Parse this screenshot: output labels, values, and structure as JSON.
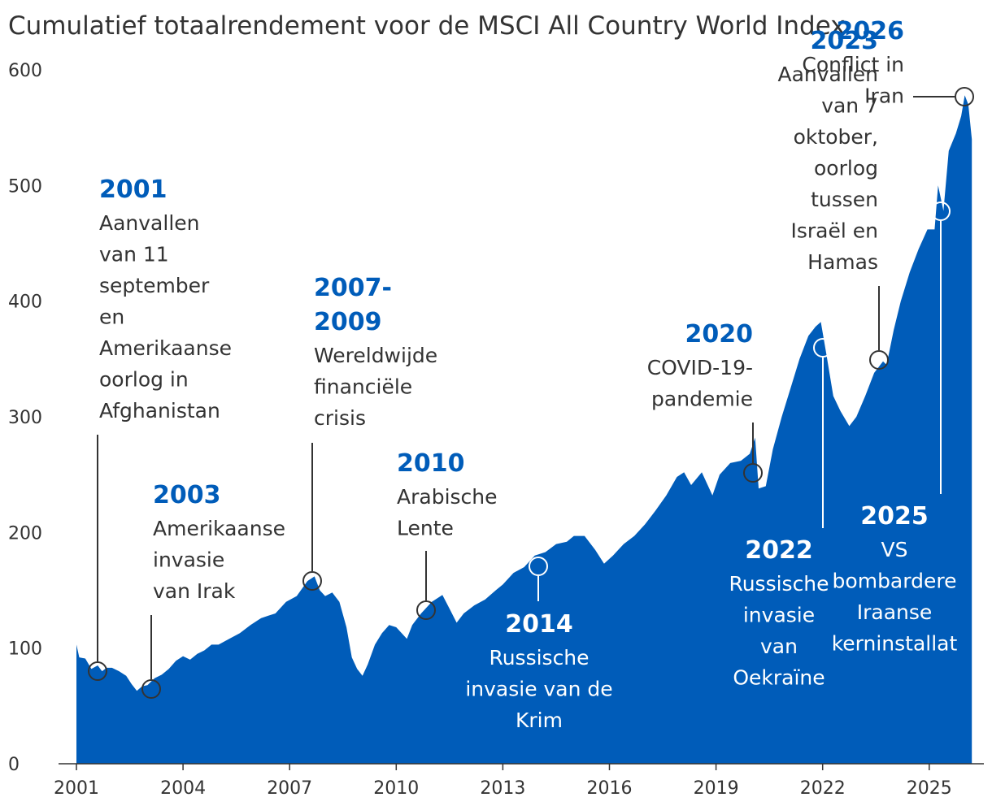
{
  "chart_data": {
    "type": "area",
    "title": "Cumulatief totaalrendement voor de MSCI All Country World Index",
    "xlabel": "",
    "ylabel": "",
    "xlim": [
      2001,
      2026.3
    ],
    "ylim": [
      0,
      600
    ],
    "x_ticks": [
      "2001",
      "2004",
      "2007",
      "2010",
      "2013",
      "2016",
      "2019",
      "2022",
      "2025"
    ],
    "y_ticks": [
      "0",
      "100",
      "200",
      "300",
      "400",
      "500",
      "600"
    ],
    "grid": false,
    "colors": {
      "area": "#005cb9",
      "year_text": "#005cb9",
      "body_text": "#333333",
      "inside_text": "#ffffff"
    },
    "series": [
      {
        "x": [
          2001.0,
          2001.08,
          2001.25,
          2001.42,
          2001.6,
          2001.72,
          2001.85,
          2002.0,
          2002.2,
          2002.4,
          2002.55,
          2002.7,
          2002.85,
          2003.0,
          2003.2,
          2003.4,
          2003.6,
          2003.8,
          2004.0,
          2004.2,
          2004.4,
          2004.6,
          2004.8,
          2005.0,
          2005.3,
          2005.6,
          2005.9,
          2006.2,
          2006.4,
          2006.6,
          2006.9,
          2007.2,
          2007.5,
          2007.7,
          2007.85,
          2008.0,
          2008.2,
          2008.4,
          2008.6,
          2008.75,
          2008.9,
          2009.05,
          2009.2,
          2009.4,
          2009.6,
          2009.8,
          2010.0,
          2010.3,
          2010.45,
          2010.7,
          2011.0,
          2011.3,
          2011.5,
          2011.7,
          2011.9,
          2012.2,
          2012.5,
          2012.8,
          2013.0,
          2013.3,
          2013.6,
          2013.9,
          2014.2,
          2014.5,
          2014.8,
          2015.0,
          2015.3,
          2015.6,
          2015.85,
          2016.1,
          2016.4,
          2016.7,
          2017.0,
          2017.3,
          2017.6,
          2017.9,
          2018.1,
          2018.3,
          2018.6,
          2018.9,
          2019.1,
          2019.4,
          2019.7,
          2019.95,
          2020.1,
          2020.2,
          2020.4,
          2020.6,
          2020.85,
          2021.1,
          2021.35,
          2021.6,
          2021.8,
          2021.95,
          2022.1,
          2022.3,
          2022.5,
          2022.75,
          2022.95,
          2023.2,
          2023.45,
          2023.7,
          2023.8,
          2024.0,
          2024.2,
          2024.45,
          2024.7,
          2024.95,
          2025.15,
          2025.25,
          2025.4,
          2025.55,
          2025.75,
          2025.9,
          2026.0,
          2026.1,
          2026.2
        ],
        "y": [
          103,
          92,
          91,
          82,
          85,
          80,
          83,
          83,
          80,
          76,
          69,
          63,
          67,
          68,
          74,
          77,
          82,
          89,
          93,
          90,
          95,
          98,
          103,
          103,
          108,
          113,
          120,
          126,
          128,
          130,
          140,
          145,
          158,
          162,
          150,
          145,
          148,
          140,
          118,
          92,
          82,
          76,
          86,
          103,
          113,
          120,
          118,
          108,
          120,
          130,
          140,
          146,
          134,
          122,
          130,
          137,
          142,
          150,
          155,
          165,
          170,
          180,
          183,
          190,
          192,
          197,
          197,
          185,
          173,
          180,
          190,
          197,
          207,
          219,
          232,
          248,
          252,
          241,
          252,
          232,
          250,
          260,
          262,
          268,
          282,
          238,
          240,
          272,
          300,
          325,
          350,
          370,
          378,
          382,
          355,
          318,
          305,
          292,
          300,
          318,
          338,
          348,
          345,
          375,
          400,
          425,
          445,
          462,
          462,
          500,
          478,
          530,
          545,
          560,
          578,
          570,
          540
        ]
      }
    ],
    "annotations": [
      {
        "year": "2001",
        "lines": [
          "Aanvallen",
          "van 11",
          "september",
          "en",
          "Amerikaanse",
          "oorlog in",
          "Afghanistan"
        ]
      },
      {
        "year": "2003",
        "lines": [
          "Amerikaanse",
          "invasie",
          "van Irak"
        ]
      },
      {
        "year": "2007-",
        "year2": "2009",
        "lines": [
          "Wereldwijde",
          "financiële",
          "crisis"
        ]
      },
      {
        "year": "2010",
        "lines": [
          "Arabische",
          "Lente"
        ]
      },
      {
        "year": "2014",
        "lines": [
          "Russische",
          "invasie van de",
          "Krim"
        ]
      },
      {
        "year": "2020",
        "lines": [
          "COVID-19-",
          "pandemie"
        ]
      },
      {
        "year": "2022",
        "lines": [
          "Russische",
          "invasie",
          "van",
          "Oekraïne"
        ]
      },
      {
        "year": "2023",
        "lines": [
          "Aanvallen",
          "van 7",
          "oktober,",
          "oorlog",
          "tussen",
          "Israël en",
          "Hamas"
        ]
      },
      {
        "year": "2025",
        "lines": [
          "VS",
          "bombardere",
          "Iraanse",
          "kerninstallat"
        ]
      },
      {
        "year": "2026",
        "lines": [
          "Conflict in",
          "Iran"
        ]
      }
    ]
  }
}
